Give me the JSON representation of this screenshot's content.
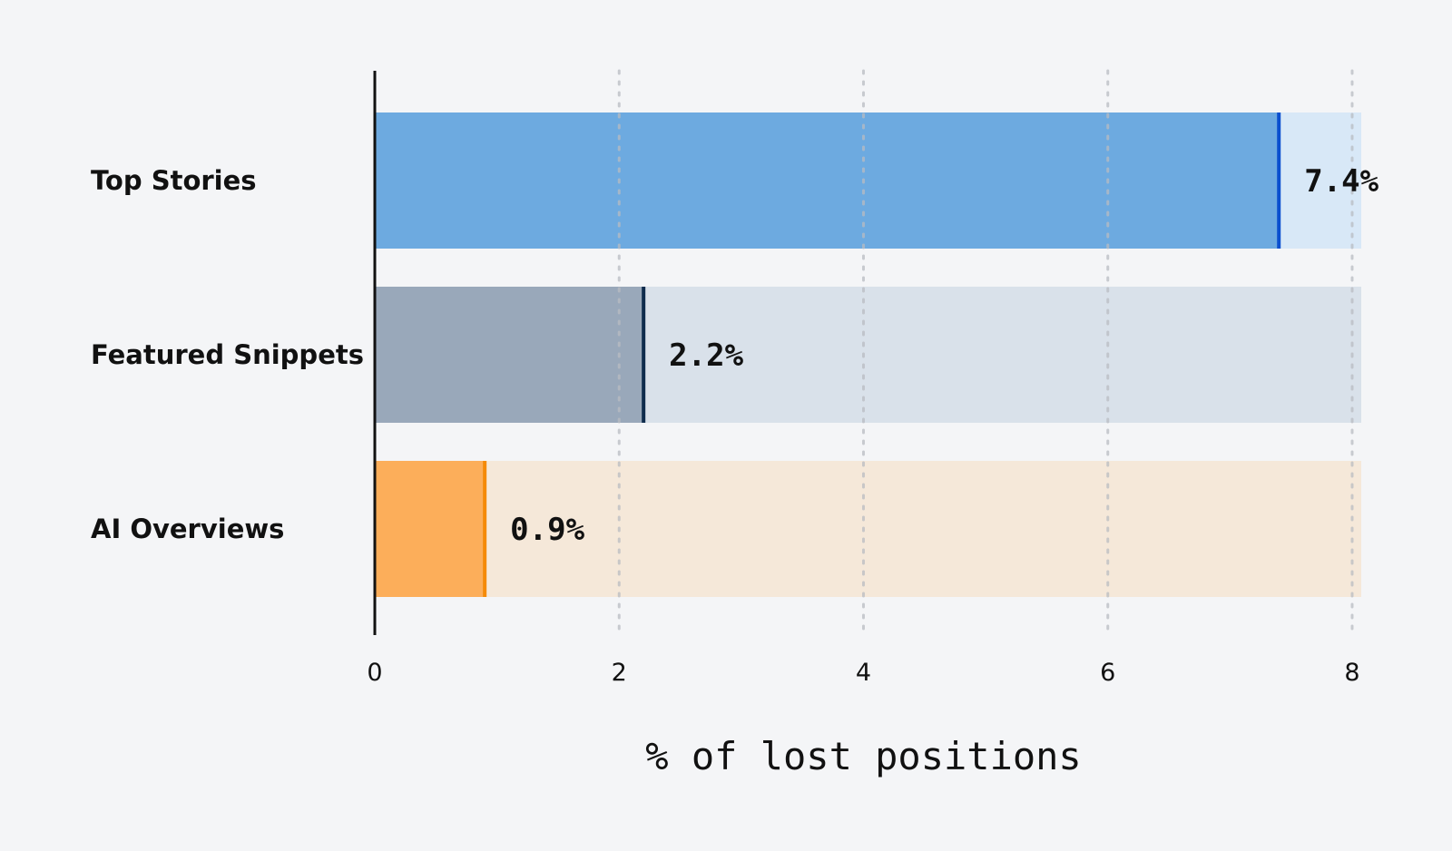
{
  "chart_data": {
    "type": "bar",
    "orientation": "horizontal",
    "categories": [
      "Top Stories",
      "Featured Snippets",
      "AI Overviews"
    ],
    "values": [
      7.4,
      2.2,
      0.9
    ],
    "value_labels": [
      "7.4%",
      "2.2%",
      "0.9%"
    ],
    "xlabel": "% of lost positions",
    "xlim": [
      0,
      8
    ],
    "xticks": [
      0,
      2,
      4,
      6,
      8
    ],
    "grid": "vertical-dotted",
    "colors": {
      "fill": [
        "#6daae0",
        "#99a8ba",
        "#fcae5a"
      ],
      "track": [
        "#d8e8f7",
        "#d9e1ea",
        "#f5e8d9"
      ],
      "edge": [
        "#0b4fcf",
        "#0f2c4d",
        "#f58a07"
      ]
    }
  }
}
